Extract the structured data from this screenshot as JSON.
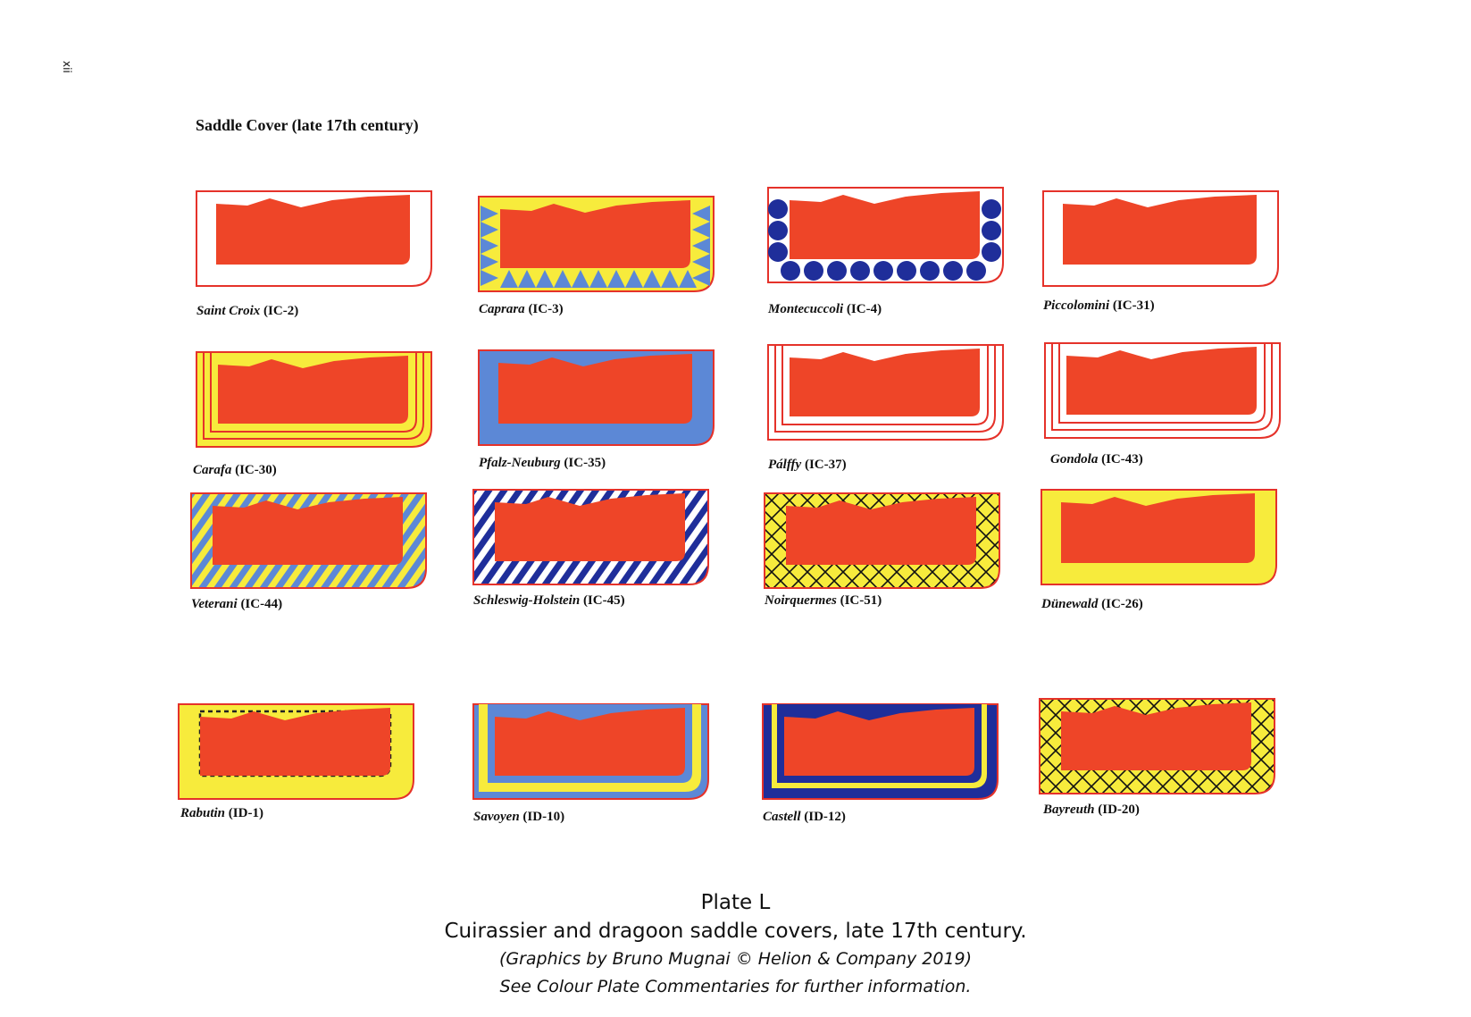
{
  "page_number": "xii",
  "heading": "Saddle Cover (late 17th century)",
  "colors": {
    "field": "#EE4528",
    "yellow": "#F7EB3C",
    "blue": "#5C88D6",
    "navy": "#1F2E9A",
    "edge": "#E5322A"
  },
  "items": [
    {
      "name": "Saint Croix",
      "code": "(IC-2)",
      "style": "white-border"
    },
    {
      "name": "Caprara",
      "code": "(IC-3)",
      "style": "yellow-blue-triangles"
    },
    {
      "name": "Montecuccoli",
      "code": "(IC-4)",
      "style": "navy-circles"
    },
    {
      "name": "Piccolomini",
      "code": "(IC-31)",
      "style": "white-border"
    },
    {
      "name": "Carafa",
      "code": "(IC-30)",
      "style": "yellow-red-stripes"
    },
    {
      "name": "Pfalz-Neuburg",
      "code": "(IC-35)",
      "style": "blue-border"
    },
    {
      "name": "Pálffy",
      "code": "(IC-37)",
      "style": "white-red-stripes"
    },
    {
      "name": "Gondola",
      "code": "(IC-43)",
      "style": "white-red-stripes"
    },
    {
      "name": "Veterani",
      "code": "(IC-44)",
      "style": "yellow-blue-diagonal"
    },
    {
      "name": "Schleswig-Holstein",
      "code": "(IC-45)",
      "style": "navy-white-diagonal"
    },
    {
      "name": "Noirquermes",
      "code": "(IC-51)",
      "style": "yellow-zigzag"
    },
    {
      "name": "Dünewald",
      "code": "(IC-26)",
      "style": "yellow-border"
    },
    {
      "name": "Rabutin",
      "code": "(ID-1)",
      "style": "yellow-dotted"
    },
    {
      "name": "Savoyen",
      "code": "(ID-10)",
      "style": "blue-yellow"
    },
    {
      "name": "Castell",
      "code": "(ID-12)",
      "style": "navy-yellow"
    },
    {
      "name": "Bayreuth",
      "code": "(ID-20)",
      "style": "yellow-crosshatch"
    }
  ],
  "footer": {
    "plate": "Plate L",
    "subtitle": "Cuirassier and dragoon saddle covers, late 17th century.",
    "credit": "(Graphics by Bruno Mugnai © Helion & Company 2019)",
    "note": "See Colour Plate Commentaries for further information."
  }
}
